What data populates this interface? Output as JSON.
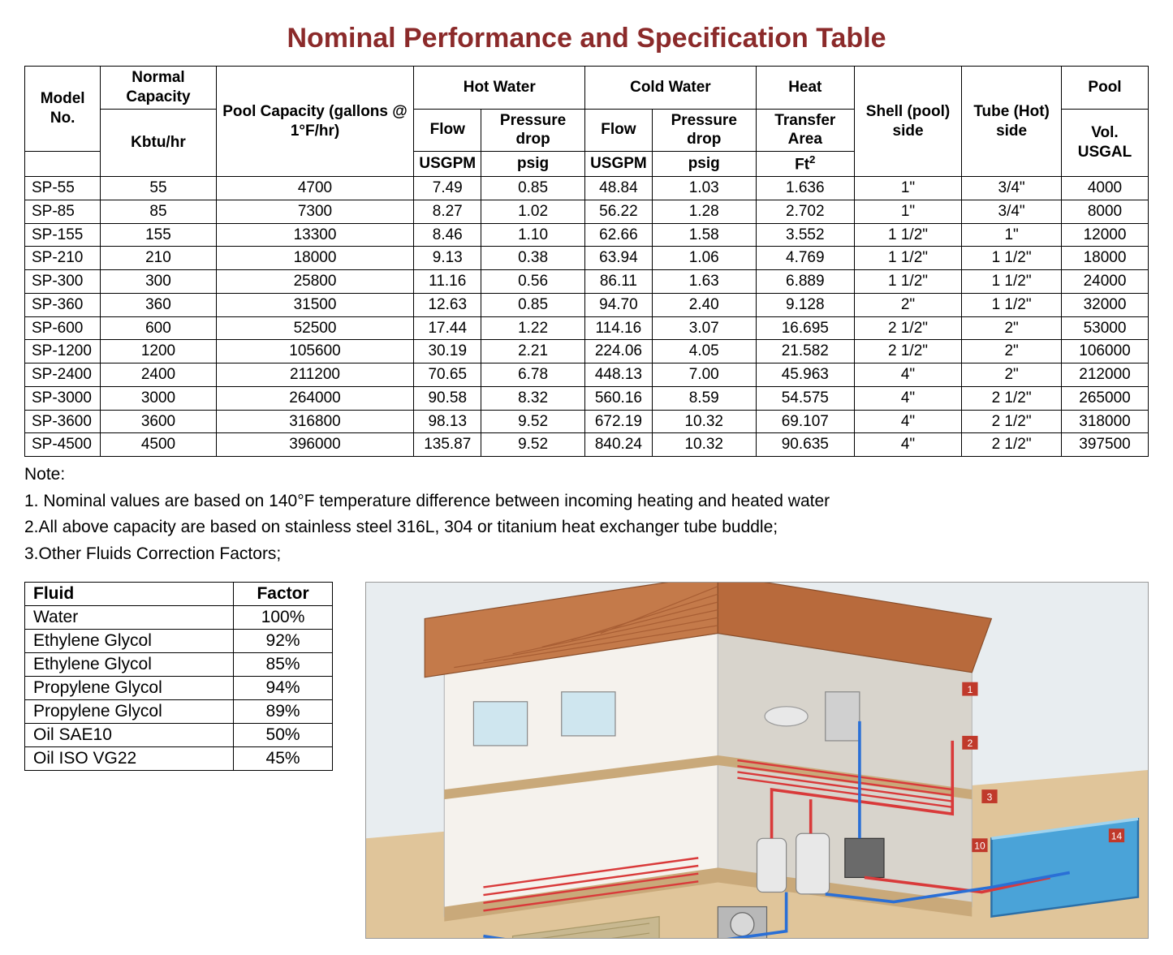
{
  "title": "Nominal Performance and Specification Table",
  "title_color": "#8b2a2a",
  "spec_table": {
    "header_groups": {
      "model_no": "Model No.",
      "normal_capacity": "Normal Capacity",
      "pool_capacity": "Pool Capacity (gallons @ 1°F/hr)",
      "hot_water": "Hot Water",
      "cold_water": "Cold Water",
      "heat": "Heat",
      "shell": "Shell (pool) side",
      "tube": "Tube (Hot) side",
      "pool": "Pool"
    },
    "header_sub": {
      "flow_h": "Flow",
      "pdrop_h": "Pressure drop",
      "flow_c": "Flow",
      "pdrop_c": "Pressure drop",
      "transfer_area": "Transfer Area",
      "pool_vol": "Vol. USGAL"
    },
    "header_units": {
      "kbtu": "Kbtu/hr",
      "usgpm_h": "USGPM",
      "psig_h": "psig",
      "usgpm_c": "USGPM",
      "psig_c": "psig",
      "ft2": "Ft",
      "ft2_sup": "2"
    },
    "rows": [
      {
        "model": "SP-55",
        "cap": "55",
        "poolcap": "4700",
        "hflow": "7.49",
        "hpd": "0.85",
        "cflow": "48.84",
        "cpd": "1.03",
        "area": "1.636",
        "shell": "1\"",
        "tube": "3/4\"",
        "pvol": "4000"
      },
      {
        "model": "SP-85",
        "cap": "85",
        "poolcap": "7300",
        "hflow": "8.27",
        "hpd": "1.02",
        "cflow": "56.22",
        "cpd": "1.28",
        "area": "2.702",
        "shell": "1\"",
        "tube": "3/4\"",
        "pvol": "8000"
      },
      {
        "model": "SP-155",
        "cap": "155",
        "poolcap": "13300",
        "hflow": "8.46",
        "hpd": "1.10",
        "cflow": "62.66",
        "cpd": "1.58",
        "area": "3.552",
        "shell": "1 1/2\"",
        "tube": "1\"",
        "pvol": "12000"
      },
      {
        "model": "SP-210",
        "cap": "210",
        "poolcap": "18000",
        "hflow": "9.13",
        "hpd": "0.38",
        "cflow": "63.94",
        "cpd": "1.06",
        "area": "4.769",
        "shell": "1 1/2\"",
        "tube": "1 1/2\"",
        "pvol": "18000"
      },
      {
        "model": "SP-300",
        "cap": "300",
        "poolcap": "25800",
        "hflow": "11.16",
        "hpd": "0.56",
        "cflow": "86.11",
        "cpd": "1.63",
        "area": "6.889",
        "shell": "1 1/2\"",
        "tube": "1 1/2\"",
        "pvol": "24000"
      },
      {
        "model": "SP-360",
        "cap": "360",
        "poolcap": "31500",
        "hflow": "12.63",
        "hpd": "0.85",
        "cflow": "94.70",
        "cpd": "2.40",
        "area": "9.128",
        "shell": "2\"",
        "tube": "1 1/2\"",
        "pvol": "32000"
      },
      {
        "model": "SP-600",
        "cap": "600",
        "poolcap": "52500",
        "hflow": "17.44",
        "hpd": "1.22",
        "cflow": "114.16",
        "cpd": "3.07",
        "area": "16.695",
        "shell": "2 1/2\"",
        "tube": "2\"",
        "pvol": "53000"
      },
      {
        "model": "SP-1200",
        "cap": "1200",
        "poolcap": "105600",
        "hflow": "30.19",
        "hpd": "2.21",
        "cflow": "224.06",
        "cpd": "4.05",
        "area": "21.582",
        "shell": "2 1/2\"",
        "tube": "2\"",
        "pvol": "106000"
      },
      {
        "model": "SP-2400",
        "cap": "2400",
        "poolcap": "211200",
        "hflow": "70.65",
        "hpd": "6.78",
        "cflow": "448.13",
        "cpd": "7.00",
        "area": "45.963",
        "shell": "4\"",
        "tube": "2\"",
        "pvol": "212000"
      },
      {
        "model": "SP-3000",
        "cap": "3000",
        "poolcap": "264000",
        "hflow": "90.58",
        "hpd": "8.32",
        "cflow": "560.16",
        "cpd": "8.59",
        "area": "54.575",
        "shell": "4\"",
        "tube": "2 1/2\"",
        "pvol": "265000"
      },
      {
        "model": "SP-3600",
        "cap": "3600",
        "poolcap": "316800",
        "hflow": "98.13",
        "hpd": "9.52",
        "cflow": "672.19",
        "cpd": "10.32",
        "area": "69.107",
        "shell": "4\"",
        "tube": "2 1/2\"",
        "pvol": "318000"
      },
      {
        "model": "SP-4500",
        "cap": "4500",
        "poolcap": "396000",
        "hflow": "135.87",
        "hpd": "9.52",
        "cflow": "840.24",
        "cpd": "10.32",
        "area": "90.635",
        "shell": "4\"",
        "tube": "2 1/2\"",
        "pvol": "397500"
      }
    ]
  },
  "notes": {
    "heading": "Note:",
    "items": [
      "1. Nominal values are based on 140°F temperature difference between incoming heating and heated water",
      "2.All above capacity are based on stainless steel 316L, 304 or titanium heat exchanger tube buddle;",
      "3.Other Fluids Correction Factors;"
    ]
  },
  "factor_table": {
    "headers": {
      "fluid": "Fluid",
      "factor": "Factor"
    },
    "rows": [
      {
        "fluid": "Water",
        "factor": "100%"
      },
      {
        "fluid": "Ethylene Glycol",
        "factor": "92%"
      },
      {
        "fluid": "Ethylene Glycol",
        "factor": "85%"
      },
      {
        "fluid": "Propylene Glycol",
        "factor": "94%"
      },
      {
        "fluid": "Propylene Glycol",
        "factor": "89%"
      },
      {
        "fluid": "Oil SAE10",
        "factor": "50%"
      },
      {
        "fluid": "Oil ISO VG22",
        "factor": "45%"
      }
    ]
  },
  "diagram": {
    "colors": {
      "sky": "#e8edf0",
      "ground": "#e0c59a",
      "roof": "#c47a4a",
      "wall": "#f5f2ed",
      "wall_shade": "#d8d4cc",
      "floor": "#c9a97a",
      "pool": "#4aa3d8",
      "pipe_hot": "#d93a3a",
      "pipe_cold": "#2a6fd6",
      "equip": "#b8b8b8",
      "equip_dark": "#6a6a6a"
    }
  }
}
